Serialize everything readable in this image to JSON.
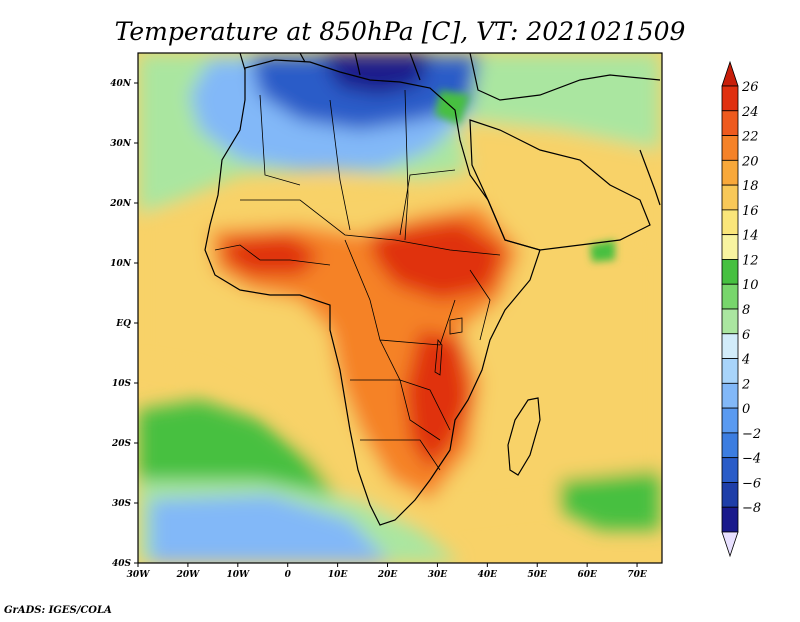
{
  "title": "Temperature at 850hPa [C], VT: 2021021509",
  "footer": "GrADS: IGES/COLA",
  "map": {
    "lon_range": [
      -30,
      75
    ],
    "lat_range": [
      -40,
      45
    ],
    "x_ticks": [
      {
        "value": -30,
        "label": "30W"
      },
      {
        "value": -20,
        "label": "20W"
      },
      {
        "value": -10,
        "label": "10W"
      },
      {
        "value": 0,
        "label": "0"
      },
      {
        "value": 10,
        "label": "10E"
      },
      {
        "value": 20,
        "label": "20E"
      },
      {
        "value": 30,
        "label": "30E"
      },
      {
        "value": 40,
        "label": "40E"
      },
      {
        "value": 50,
        "label": "50E"
      },
      {
        "value": 60,
        "label": "60E"
      },
      {
        "value": 70,
        "label": "70E"
      }
    ],
    "y_ticks": [
      {
        "value": 40,
        "label": "40N"
      },
      {
        "value": 30,
        "label": "30N"
      },
      {
        "value": 20,
        "label": "20N"
      },
      {
        "value": 10,
        "label": "10N"
      },
      {
        "value": 0,
        "label": "EQ"
      },
      {
        "value": -10,
        "label": "10S"
      },
      {
        "value": -20,
        "label": "20S"
      },
      {
        "value": -30,
        "label": "30S"
      },
      {
        "value": -40,
        "label": "40S"
      }
    ]
  },
  "colorbar": {
    "levels": [
      {
        "value": 26,
        "label": "26"
      },
      {
        "value": 24,
        "label": "24"
      },
      {
        "value": 22,
        "label": "22"
      },
      {
        "value": 20,
        "label": "20"
      },
      {
        "value": 18,
        "label": "18"
      },
      {
        "value": 16,
        "label": "16"
      },
      {
        "value": 14,
        "label": "14"
      },
      {
        "value": 12,
        "label": "12"
      },
      {
        "value": 10,
        "label": "10"
      },
      {
        "value": 8,
        "label": "8"
      },
      {
        "value": 6,
        "label": "6"
      },
      {
        "value": 4,
        "label": "4"
      },
      {
        "value": 2,
        "label": "2"
      },
      {
        "value": 0,
        "label": "0"
      },
      {
        "value": -2,
        "label": "−2"
      },
      {
        "value": -4,
        "label": "−4"
      },
      {
        "value": -6,
        "label": "−6"
      },
      {
        "value": -8,
        "label": "−8"
      }
    ],
    "colors": [
      "#e8e0ff",
      "#1a1a8c",
      "#1e3ea8",
      "#2a5cc8",
      "#3c7de0",
      "#5a9af0",
      "#82b8f8",
      "#a8d4fa",
      "#d2ecfa",
      "#aae6a0",
      "#78d66c",
      "#46c040",
      "#f8f4a0",
      "#fae67a",
      "#f8c858",
      "#f8a83a",
      "#f58228",
      "#ee5a1e",
      "#e03010",
      "#c81e0a"
    ]
  },
  "field_palette": {
    "cold_core": "#1a1a8c",
    "cold": "#2a5cc8",
    "cool": "#82b8f8",
    "mild": "#aae6a0",
    "green": "#46c040",
    "warm": "#f8d268",
    "hot": "#f58228",
    "hottest": "#e03010"
  }
}
